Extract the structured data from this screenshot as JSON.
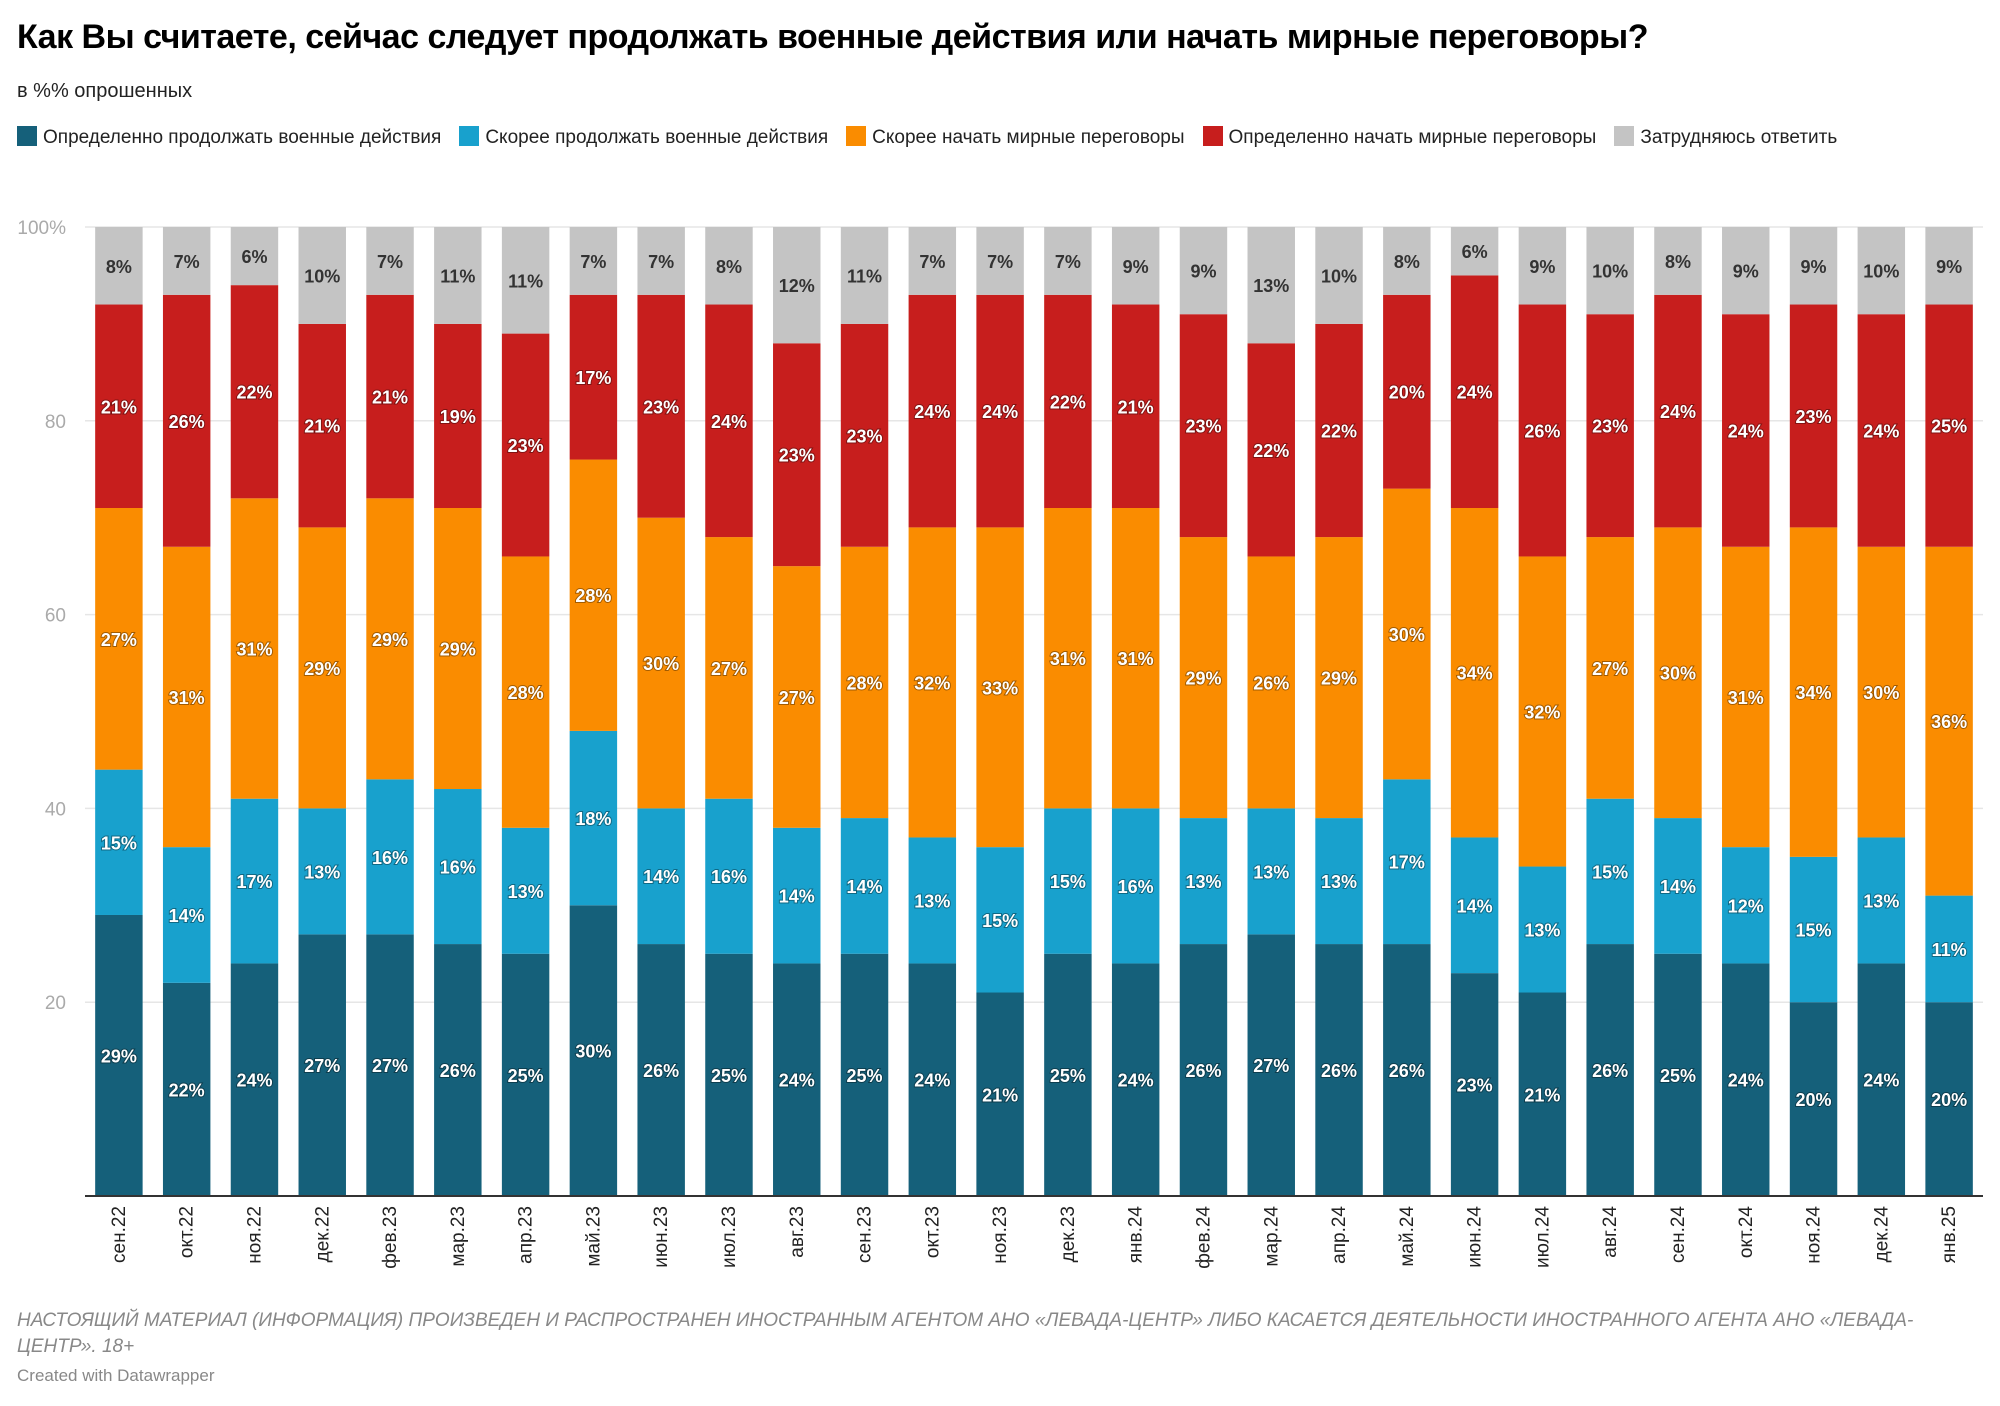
{
  "title": "Как Вы считаете, сейчас следует продолжать военные действия или начать мирные переговоры?",
  "subtitle": "в %% опрошенных",
  "footer_note": "НАСТОЯЩИЙ МАТЕРИАЛ (ИНФОРМАЦИЯ) ПРОИЗВЕДЕН И РАСПРОСТРАНЕН ИНОСТРАННЫМ АГЕНТОМ АНО «ЛЕВАДА-ЦЕНТР» ЛИБО КАСАЕТСЯ ДЕЯТЕЛЬНОСТИ ИНОСТРАННОГО АГЕНТА АНО «ЛЕВАДА-ЦЕНТР». 18+",
  "credit": "Created with Datawrapper",
  "chart_data": {
    "type": "bar",
    "stacked": true,
    "orientation": "vertical",
    "ylim": [
      0,
      100
    ],
    "yticks": [
      "20",
      "40",
      "60",
      "80",
      "100%"
    ],
    "grid": true,
    "legend_position": "top",
    "categories": [
      "сен.22",
      "окт.22",
      "ноя.22",
      "дек.22",
      "фев.23",
      "мар.23",
      "апр.23",
      "май.23",
      "июн.23",
      "июл.23",
      "авг.23",
      "сен.23",
      "окт.23",
      "ноя.23",
      "дек.23",
      "янв.24",
      "фев.24",
      "мар.24",
      "апр.24",
      "май.24",
      "июн.24",
      "июл.24",
      "авг.24",
      "сен.24",
      "окт.24",
      "ноя.24",
      "дек.24",
      "янв.25"
    ],
    "series": [
      {
        "name": "Определенно продолжать военные действия",
        "color": "#15607a",
        "values": [
          29,
          22,
          24,
          27,
          27,
          26,
          25,
          30,
          26,
          25,
          24,
          25,
          24,
          21,
          25,
          24,
          26,
          27,
          26,
          26,
          23,
          21,
          26,
          25,
          24,
          20,
          24,
          20
        ]
      },
      {
        "name": "Скорее продолжать военные действия",
        "color": "#18a1cd",
        "values": [
          15,
          14,
          17,
          13,
          16,
          16,
          13,
          18,
          14,
          16,
          14,
          14,
          13,
          15,
          15,
          16,
          13,
          13,
          13,
          17,
          14,
          13,
          15,
          14,
          12,
          15,
          13,
          11
        ]
      },
      {
        "name": "Скорее начать мирные переговоры",
        "color": "#fa8c00",
        "values": [
          27,
          31,
          31,
          29,
          29,
          29,
          28,
          28,
          30,
          27,
          27,
          28,
          32,
          33,
          31,
          31,
          29,
          26,
          29,
          30,
          34,
          32,
          27,
          30,
          31,
          34,
          30,
          36
        ]
      },
      {
        "name": "Определенно начать мирные переговоры",
        "color": "#c71e1d",
        "values": [
          21,
          26,
          22,
          21,
          21,
          19,
          23,
          17,
          23,
          24,
          23,
          23,
          24,
          24,
          22,
          21,
          23,
          22,
          22,
          20,
          24,
          26,
          23,
          24,
          24,
          23,
          24,
          25
        ]
      },
      {
        "name": "Затрудняюсь ответить",
        "color": "#c4c4c4",
        "values": [
          8,
          7,
          6,
          10,
          7,
          11,
          11,
          7,
          7,
          8,
          12,
          11,
          7,
          7,
          7,
          9,
          9,
          13,
          10,
          8,
          6,
          9,
          10,
          8,
          9,
          9,
          10,
          9
        ]
      }
    ]
  }
}
